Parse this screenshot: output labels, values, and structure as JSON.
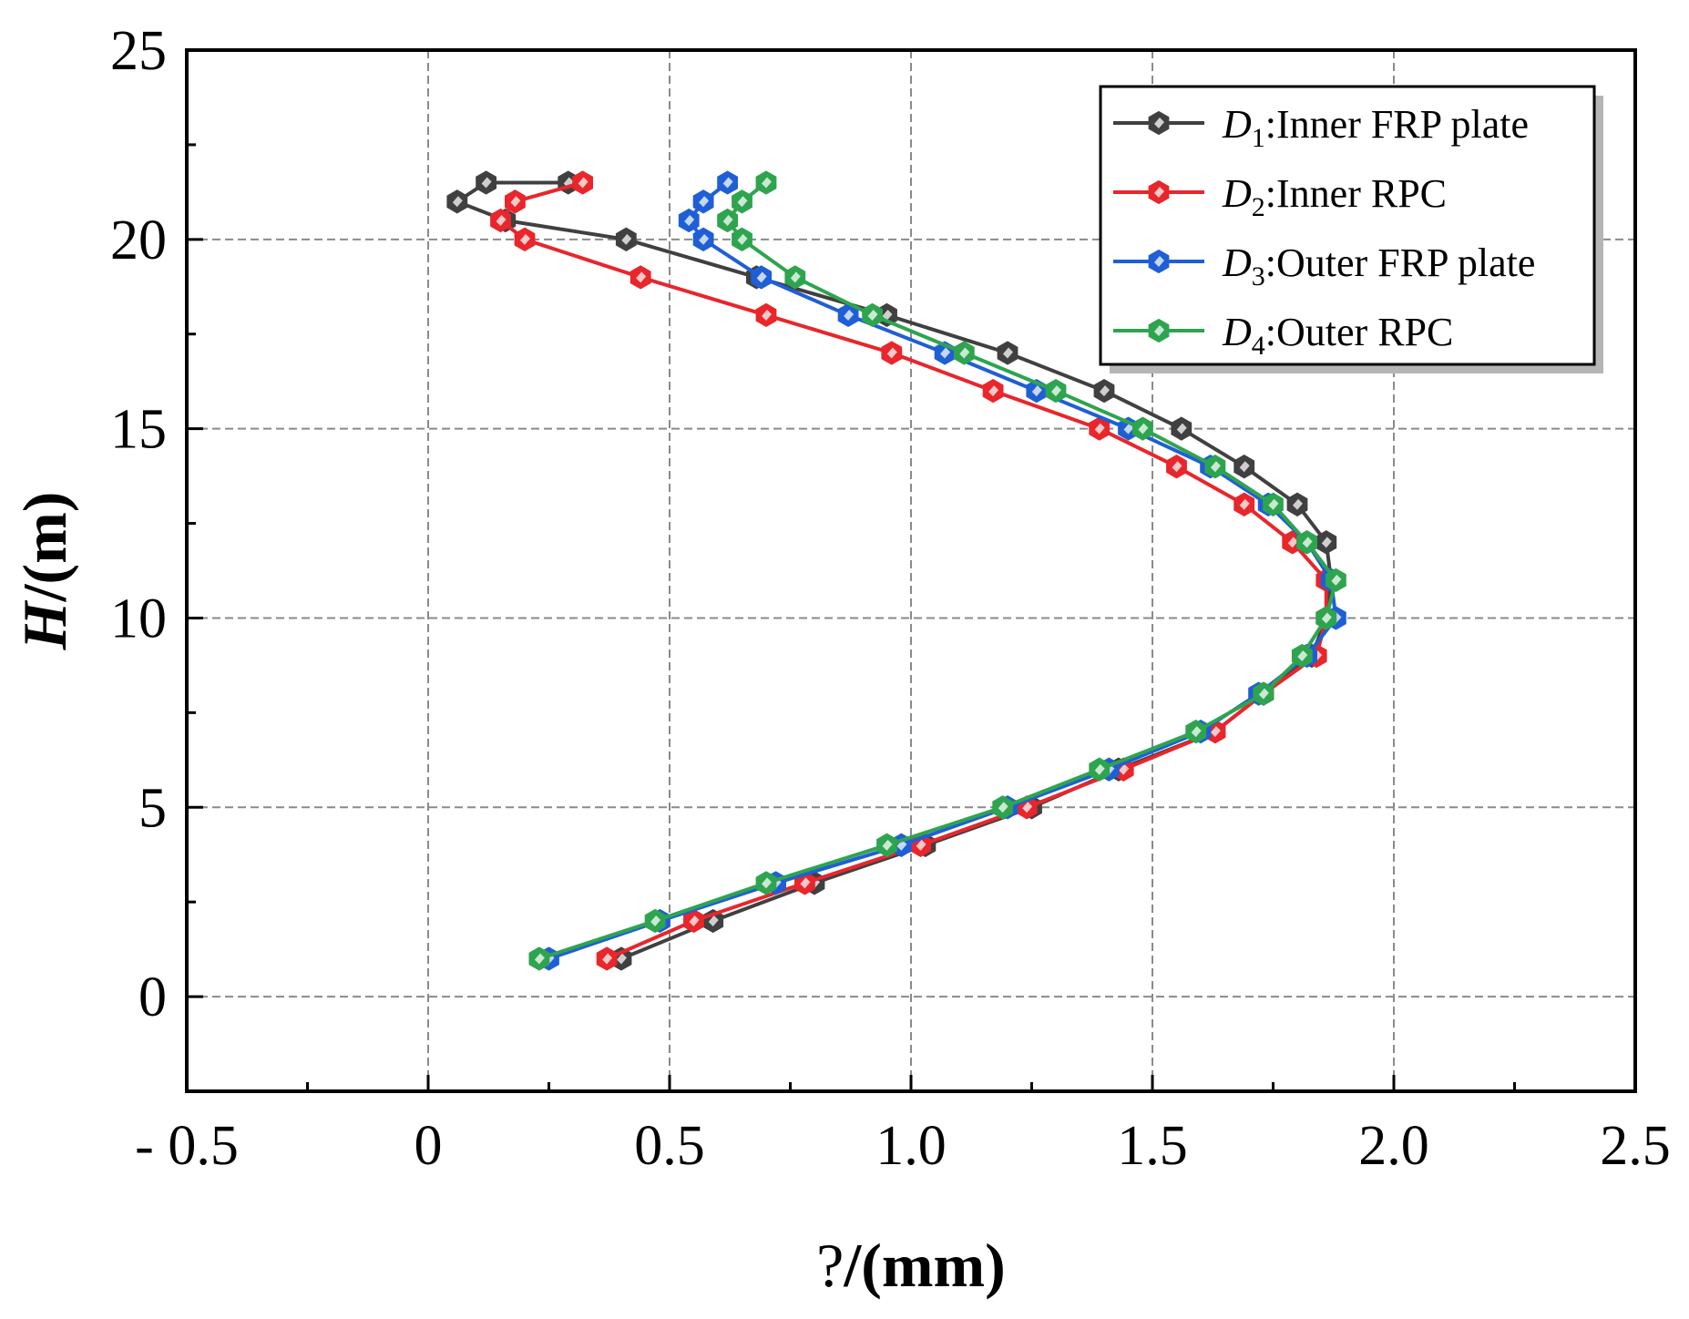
{
  "chart_data": {
    "type": "line",
    "xlabel_prefix": "?",
    "xlabel_suffix": "/(mm)",
    "ylabel_var": "H",
    "ylabel_unit": "/(m)",
    "xlim": [
      -0.5,
      2.5
    ],
    "ylim": [
      -2.5,
      25
    ],
    "xticks": [
      -0.5,
      0,
      0.5,
      1.0,
      1.5,
      2.0,
      2.5
    ],
    "xtick_labels": [
      "- 0.5",
      "0",
      "0.5",
      "1.0",
      "1.5",
      "2.0",
      "2.5"
    ],
    "yticks": [
      0,
      5,
      10,
      15,
      20,
      25
    ],
    "ytick_labels": [
      "0",
      "5",
      "10",
      "15",
      "20",
      "25"
    ],
    "grid": true,
    "legend_position": "top-right",
    "series": [
      {
        "symbol": "D",
        "sub": "1",
        "label": ":Inner FRP plate",
        "color": "#404040",
        "x": [
          0.4,
          0.59,
          0.8,
          1.03,
          1.25,
          1.43,
          1.63,
          1.73,
          1.83,
          1.86,
          1.87,
          1.86,
          1.8,
          1.69,
          1.56,
          1.4,
          1.2,
          0.95,
          0.68,
          0.41,
          0.16,
          0.06,
          0.12,
          0.29
        ],
        "y": [
          1,
          2,
          3,
          4,
          5,
          6,
          7,
          8,
          9,
          10,
          11,
          12,
          13,
          14,
          15,
          16,
          17,
          18,
          19,
          20,
          20.5,
          21,
          21.5,
          21.5
        ]
      },
      {
        "symbol": "D",
        "sub": "2",
        "label": ":Inner RPC",
        "color": "#e8262b",
        "x": [
          0.37,
          0.55,
          0.78,
          1.02,
          1.24,
          1.44,
          1.63,
          1.73,
          1.84,
          1.86,
          1.86,
          1.79,
          1.69,
          1.55,
          1.39,
          1.17,
          0.96,
          0.7,
          0.44,
          0.2,
          0.15,
          0.18,
          0.32
        ],
        "y": [
          1,
          2,
          3,
          4,
          5,
          6,
          7,
          8,
          9,
          10,
          11,
          12,
          13,
          14,
          15,
          16,
          17,
          18,
          19,
          20,
          20.5,
          21,
          21.5
        ]
      },
      {
        "symbol": "D",
        "sub": "3",
        "label": ":Outer FRP plate",
        "color": "#1f5fd6",
        "x": [
          0.25,
          0.48,
          0.72,
          0.98,
          1.2,
          1.41,
          1.6,
          1.72,
          1.82,
          1.88,
          1.87,
          1.82,
          1.74,
          1.62,
          1.45,
          1.26,
          1.07,
          0.87,
          0.69,
          0.57,
          0.54,
          0.57,
          0.62
        ],
        "y": [
          1,
          2,
          3,
          4,
          5,
          6,
          7,
          8,
          9,
          10,
          11,
          12,
          13,
          14,
          15,
          16,
          17,
          18,
          19,
          20,
          20.5,
          21,
          21.5
        ]
      },
      {
        "symbol": "D",
        "sub": "4",
        "label": ":Outer RPC",
        "color": "#2ea44f",
        "x": [
          0.23,
          0.47,
          0.7,
          0.95,
          1.19,
          1.39,
          1.59,
          1.73,
          1.81,
          1.86,
          1.88,
          1.82,
          1.75,
          1.63,
          1.48,
          1.3,
          1.11,
          0.92,
          0.76,
          0.65,
          0.62,
          0.65,
          0.7
        ],
        "y": [
          1,
          2,
          3,
          4,
          5,
          6,
          7,
          8,
          9,
          10,
          11,
          12,
          13,
          14,
          15,
          16,
          17,
          18,
          19,
          20,
          20.5,
          21,
          21.5
        ]
      }
    ]
  }
}
